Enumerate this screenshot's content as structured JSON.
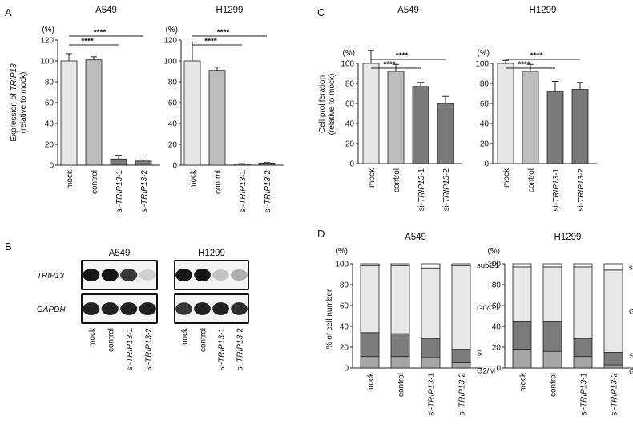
{
  "panels": {
    "A": {
      "label": "A",
      "unit": "(%)",
      "ylabel_line1": "Expression of TRIP13",
      "ylabel_line2": "(relative to mock)",
      "ylim": [
        0,
        120
      ],
      "ticks": [
        0,
        20,
        40,
        60,
        80,
        100,
        120
      ],
      "categories": [
        "mock",
        "control",
        "si-TRIP13-1",
        "si-TRIP13-2"
      ],
      "charts": [
        {
          "title": "A549",
          "values": [
            100,
            101,
            6,
            4
          ],
          "errors": [
            7,
            3,
            3.5,
            1
          ],
          "sig": [
            "****",
            "****"
          ]
        },
        {
          "title": "H1299",
          "values": [
            100,
            91,
            1,
            2
          ],
          "errors": [
            18,
            3,
            0.5,
            0.5
          ],
          "sig": [
            "****",
            "****"
          ]
        }
      ]
    },
    "B": {
      "label": "B",
      "blots": [
        {
          "title": "A549",
          "rows": [
            {
              "name": "TRIP13",
              "bands": [
                1.0,
                1.0,
                0.85,
                0.2
              ]
            },
            {
              "name": "GAPDH",
              "bands": [
                0.95,
                0.95,
                0.95,
                0.95
              ]
            }
          ]
        },
        {
          "title": "H1299",
          "rows": [
            {
              "name": "TRIP13",
              "bands": [
                1.0,
                1.0,
                0.25,
                0.35
              ]
            },
            {
              "name": "GAPDH",
              "bands": [
                0.85,
                0.95,
                0.95,
                0.9
              ]
            }
          ]
        }
      ],
      "lanes": [
        "mock",
        "control",
        "si-TRIP13-1",
        "si-TRIP13-2"
      ]
    },
    "C": {
      "label": "C",
      "unit": "(%)",
      "ylabel_line1": "Cell proliferation",
      "ylabel_line2": "(relative to mock)",
      "ylim": [
        0,
        120
      ],
      "ticks": [
        0,
        20,
        40,
        60,
        80,
        100
      ],
      "categories": [
        "mock",
        "control",
        "si-TRIP13-1",
        "si-TRIP13-2"
      ],
      "charts": [
        {
          "title": "A549",
          "values": [
            100,
            92,
            77,
            60
          ],
          "errors": [
            13,
            7,
            4,
            7
          ],
          "sig": [
            "****",
            "****"
          ]
        },
        {
          "title": "H1299",
          "values": [
            100,
            92,
            72,
            74
          ],
          "errors": [
            3,
            7,
            10,
            7
          ],
          "sig": [
            "****",
            "****"
          ]
        }
      ]
    },
    "D": {
      "label": "D",
      "unit": "(%)",
      "ylabel": "% of cell number",
      "ticks": [
        0,
        20,
        40,
        60,
        80,
        100
      ],
      "categories": [
        "mock",
        "control",
        "si-TRIP13-1",
        "si-TRIP13-2"
      ],
      "phase_labels": [
        "subG1",
        "G0/G1",
        "S",
        "G2/M"
      ],
      "charts": [
        {
          "title": "A549",
          "g2m": [
            11,
            11,
            10,
            5
          ],
          "s": [
            23,
            22,
            18,
            13
          ],
          "g0g1": [
            64,
            65,
            68,
            80
          ],
          "subg1": [
            2,
            2,
            4,
            2
          ]
        },
        {
          "title": "H1299",
          "g2m": [
            18,
            16,
            11,
            3
          ],
          "s": [
            27,
            29,
            17,
            12
          ],
          "g0g1": [
            52,
            52,
            69,
            79
          ],
          "subg1": [
            3,
            3,
            3,
            6
          ]
        }
      ]
    }
  },
  "colors": {
    "light": "#e6e6e6",
    "mid": "#bdbdbd",
    "dark": "#7a7a7a",
    "g2m": "#a6a6a6",
    "s": "#7b7b7b",
    "g0g1": "#e8e8e8",
    "subg1": "#ffffff"
  }
}
